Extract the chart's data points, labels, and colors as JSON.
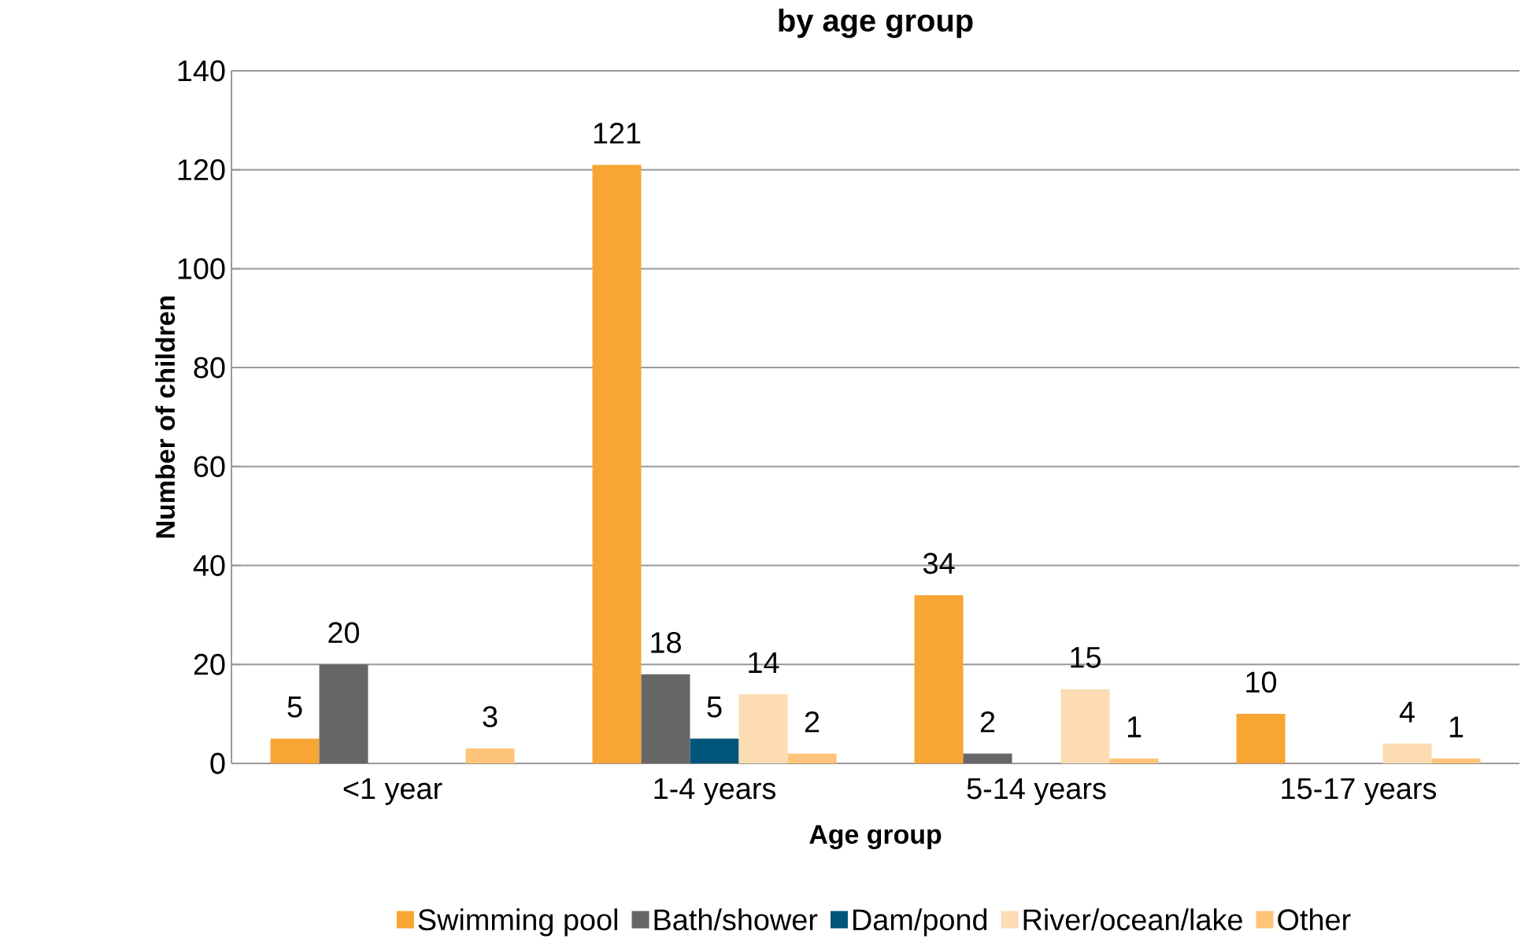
{
  "chart_data": {
    "type": "bar",
    "title": "by age group",
    "xlabel": "Age group",
    "ylabel": "Number of children",
    "categories": [
      "<1 year",
      "1-4 years",
      "5-14 years",
      "15-17 years"
    ],
    "series": [
      {
        "name": "Swimming pool",
        "color": "#f7a533",
        "values": [
          5,
          121,
          34,
          10
        ]
      },
      {
        "name": "Bath/shower",
        "color": "#666666",
        "values": [
          20,
          18,
          2,
          null
        ]
      },
      {
        "name": "Dam/pond",
        "color": "#00557a",
        "values": [
          null,
          5,
          null,
          null
        ]
      },
      {
        "name": "River/ocean/lake",
        "color": "#fddcb4",
        "values": [
          null,
          14,
          15,
          4
        ]
      },
      {
        "name": "Other",
        "color": "#fec47a",
        "values": [
          3,
          2,
          1,
          1
        ]
      }
    ],
    "ylim": [
      0,
      140
    ],
    "yticks": [
      0,
      20,
      40,
      60,
      80,
      100,
      120,
      140
    ],
    "grid": "y",
    "legend": "bottom",
    "data_labels": true
  }
}
